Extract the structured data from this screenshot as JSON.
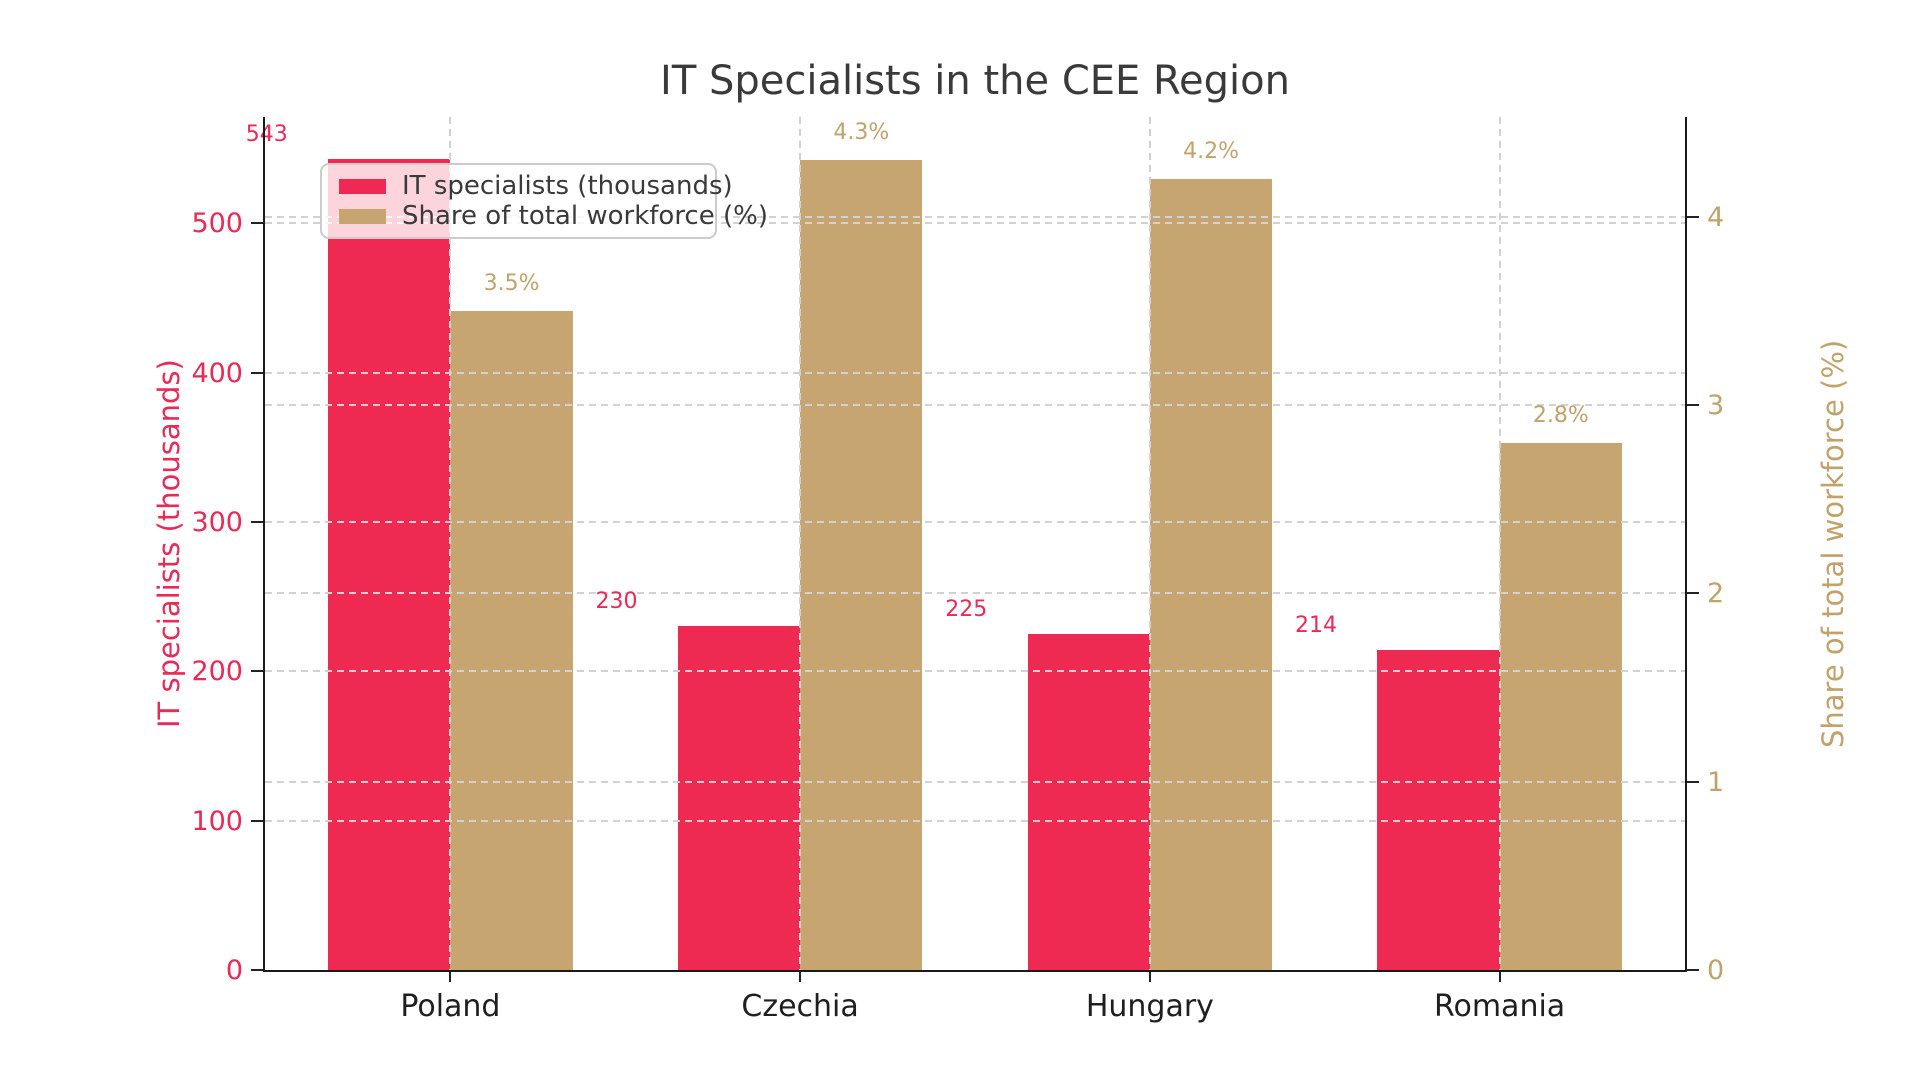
{
  "title": "IT Specialists in the CEE Region",
  "chart_data": {
    "type": "bar",
    "title": "IT Specialists in the CEE Region",
    "categories": [
      "Poland",
      "Czechia",
      "Hungary",
      "Romania"
    ],
    "series": [
      {
        "name": "IT specialists (thousands)",
        "axis": "left",
        "values": [
          543,
          230,
          225,
          214
        ],
        "data_labels": [
          "543",
          "230",
          "225",
          "214"
        ],
        "color": "#ef2a52",
        "label_color": "#e92a56"
      },
      {
        "name": "Share of total workforce (%)",
        "axis": "right",
        "values": [
          3.5,
          4.3,
          4.2,
          2.8
        ],
        "data_labels": [
          "3.5%",
          "4.3%",
          "4.2%",
          "2.8%"
        ],
        "color": "#c6a571",
        "label_color": "#c1a26b"
      }
    ],
    "left_axis": {
      "label": "IT specialists (thousands)",
      "tick_labels": [
        "0",
        "100",
        "200",
        "300",
        "400",
        "500"
      ],
      "tick_values": [
        0,
        100,
        200,
        300,
        400,
        500
      ],
      "range": [
        0,
        571
      ],
      "color": "#e92a56"
    },
    "right_axis": {
      "label": "Share of total workforce (%)",
      "tick_labels": [
        "0",
        "1",
        "2",
        "3",
        "4"
      ],
      "tick_values": [
        0,
        1,
        2,
        3,
        4
      ],
      "range": [
        0,
        4.53
      ],
      "color": "#c1a26b"
    },
    "grid": true,
    "legend_position": "upper left"
  },
  "colors": {
    "crimson_bar": "#ef2a52",
    "tan_bar": "#c6a571",
    "title_text": "#3a3a3a",
    "category_text": "#1f1f1f",
    "grid": "#d2d2d2",
    "spine": "#1a1a1a",
    "legend_border": "#cccccc"
  }
}
